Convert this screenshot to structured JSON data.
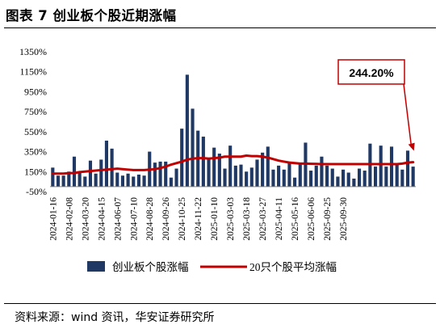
{
  "figure": {
    "title": "图表 7 创业板个股近期涨幅",
    "source": "资料来源：wind 资讯，华安证券研究所"
  },
  "chart_data": {
    "type": "bar+line",
    "y_unit": "%",
    "ylim": [
      -50,
      1350
    ],
    "y_ticks": [
      "-50%",
      "150%",
      "350%",
      "550%",
      "750%",
      "950%",
      "1150%",
      "1350%"
    ],
    "y_tick_values": [
      -50,
      150,
      350,
      550,
      750,
      950,
      1150,
      1350
    ],
    "x_tick_labels": [
      "2024-01-16",
      "2024-02-08",
      "2024-03-20",
      "2024-04-15",
      "2024-06-07",
      "2024-07-10",
      "2024-08-28",
      "2024-09-26",
      "2024-10-25",
      "2024-11-22",
      "2025-01-10",
      "2025-03-03",
      "2025-03-18",
      "2025-03-27",
      "2025-04-11",
      "2025-05-16",
      "2025-06-06",
      "2025-09-25",
      "2025-09-30"
    ],
    "x_tick_positions": [
      0,
      3,
      6,
      9,
      12,
      15,
      18,
      21,
      24,
      27,
      30,
      33,
      36,
      39,
      42,
      45,
      48,
      51,
      54
    ],
    "series": [
      {
        "name": "创业板个股涨幅",
        "type": "bar",
        "color": "#1f3864",
        "values": [
          190,
          110,
          110,
          150,
          300,
          140,
          100,
          260,
          130,
          270,
          460,
          380,
          140,
          110,
          130,
          100,
          120,
          110,
          350,
          240,
          250,
          250,
          90,
          180,
          580,
          1120,
          780,
          560,
          500,
          280,
          390,
          330,
          180,
          410,
          210,
          220,
          150,
          190,
          270,
          340,
          400,
          170,
          210,
          170,
          250,
          90,
          240,
          440,
          160,
          210,
          300,
          210,
          180,
          100,
          170,
          140,
          80,
          180,
          160,
          430,
          200,
          410,
          200,
          400,
          220,
          170,
          360,
          200
        ]
      },
      {
        "name": "20只个股平均涨幅",
        "type": "line",
        "color": "#c00000",
        "values": [
          130,
          130,
          130,
          135,
          135,
          145,
          150,
          155,
          160,
          165,
          170,
          175,
          180,
          175,
          170,
          165,
          165,
          165,
          170,
          175,
          185,
          200,
          220,
          235,
          250,
          270,
          280,
          285,
          285,
          280,
          285,
          290,
          300,
          300,
          300,
          300,
          310,
          305,
          305,
          300,
          290,
          275,
          260,
          250,
          240,
          235,
          230,
          230,
          228,
          227,
          225,
          225,
          225,
          225,
          225,
          225,
          225,
          225,
          225,
          225,
          225,
          225,
          225,
          225,
          225,
          230,
          240,
          244.2
        ]
      }
    ],
    "annotation": {
      "text": "244.20%",
      "value": 244.2,
      "color": "#c00000"
    },
    "legend": {
      "position": "bottom"
    },
    "grid": false
  }
}
